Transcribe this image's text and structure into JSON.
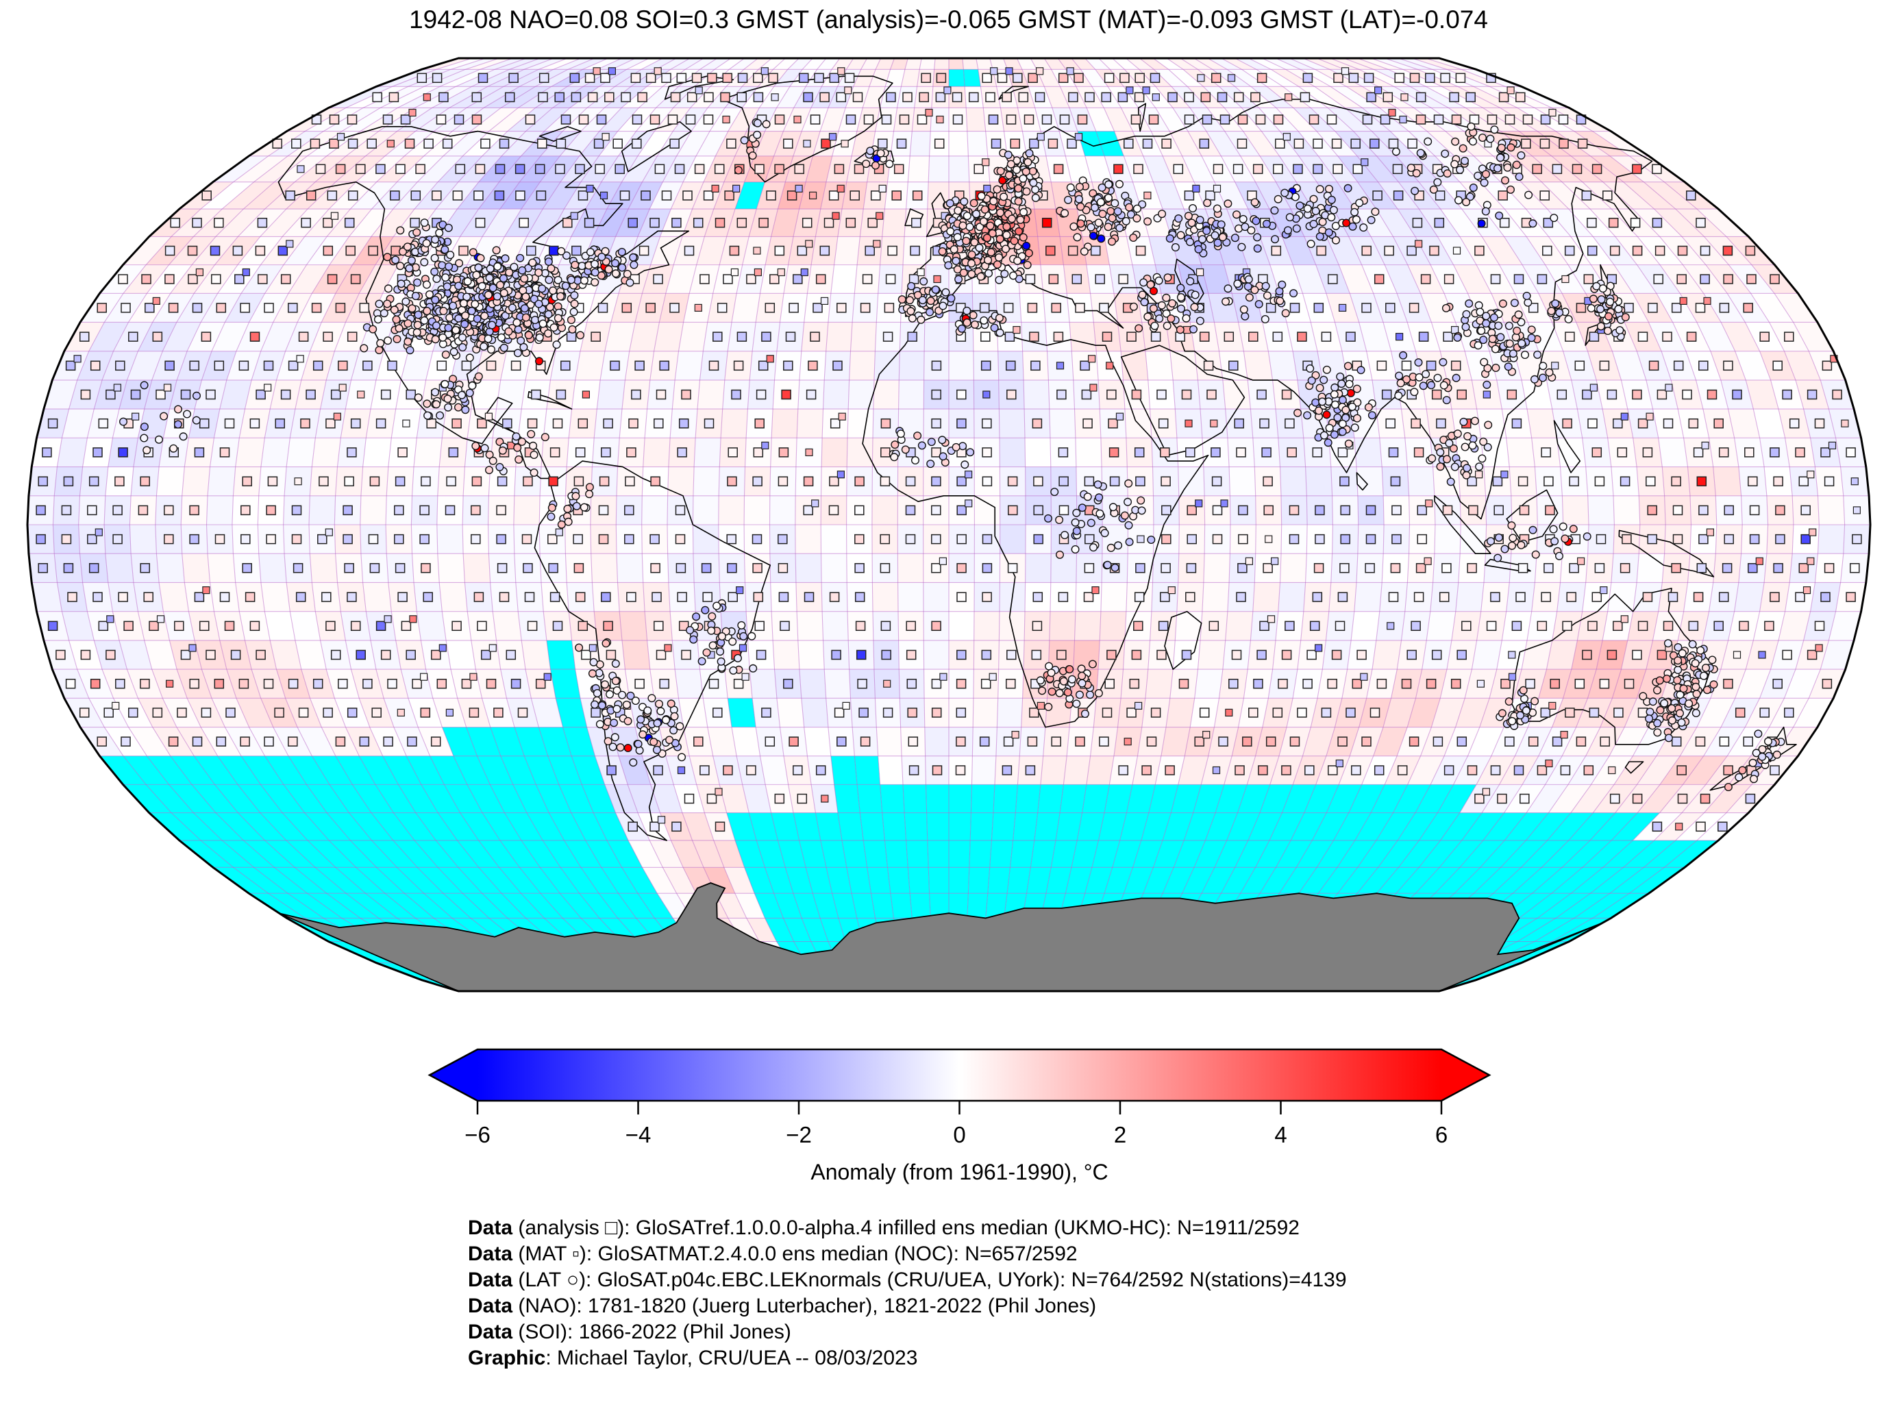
{
  "title": "1942-08 NAO=0.08 SOI=0.3 GMST (analysis)=-0.065 GMST (MAT)=-0.093 GMST (LAT)=-0.074",
  "stats": {
    "date": "1942-08",
    "nao": 0.08,
    "soi": 0.3,
    "gmst_analysis": -0.065,
    "gmst_mat": -0.093,
    "gmst_lat": -0.074
  },
  "colorbar": {
    "label": "Anomaly (from 1961-1990), °C",
    "ticks": [
      "−6",
      "−4",
      "−2",
      "0",
      "2",
      "4",
      "6"
    ],
    "tick_values": [
      -6,
      -4,
      -2,
      0,
      2,
      4,
      6
    ],
    "min": -6,
    "max": 6,
    "color_negative": "#0000ff",
    "color_zero": "#ffffff",
    "color_positive": "#ff0000"
  },
  "annotations": [
    {
      "bold": "Data",
      "rest": " (analysis □): GloSATref.1.0.0.0-alpha.4 infilled ens median (UKMO-HC): N=1911/2592"
    },
    {
      "bold": "Data",
      "rest": " (MAT ▫): GloSATMAT.2.4.0.0 ens median (NOC): N=657/2592"
    },
    {
      "bold": "Data",
      "rest": " (LAT ○): GloSAT.p04c.EBC.LEKnormals (CRU/UEA, UYork): N=764/2592 N(stations)=4139"
    },
    {
      "bold": "Data",
      "rest": " (NAO): 1781-1820 (Juerg Luterbacher), 1821-2022 (Phil Jones)"
    },
    {
      "bold": "Data",
      "rest": " (SOI): 1866-2022 (Phil Jones)"
    },
    {
      "bold": "Graphic",
      "rest": ": Michael Taylor, CRU/UEA -- 08/03/2023"
    }
  ],
  "map": {
    "projection": "robinson",
    "grid_deg": 5,
    "colors": {
      "missing": "#00ffff",
      "antarctica": "#7f7f7f",
      "graticule": "#b55fc6",
      "coastline": "#000000",
      "outline": "#000000"
    },
    "marker_fractions": {
      "analysis": 0.74,
      "mat": 0.13,
      "mat_atlantic": 0.5
    },
    "anomaly_blobs": [
      [
        -150,
        62,
        0.45,
        12,
        6
      ],
      [
        -105,
        61,
        -1.0,
        16,
        9
      ],
      [
        -76,
        54,
        -0.95,
        10,
        7
      ],
      [
        -127,
        44,
        0.95,
        7,
        7
      ],
      [
        -100,
        37,
        -0.5,
        10,
        7
      ],
      [
        -85,
        30,
        0.25,
        8,
        6
      ],
      [
        -35,
        57,
        0.95,
        20,
        9
      ],
      [
        -52,
        63,
        0.6,
        8,
        6
      ],
      [
        -42,
        79,
        -0.5,
        16,
        6
      ],
      [
        -120,
        81,
        -0.55,
        28,
        6
      ],
      [
        0,
        85,
        0.35,
        60,
        8
      ],
      [
        10,
        52,
        0.7,
        8,
        6
      ],
      [
        22,
        51,
        1.5,
        12,
        7
      ],
      [
        5,
        38,
        -0.4,
        8,
        5
      ],
      [
        42,
        33,
        0.6,
        10,
        6
      ],
      [
        55,
        43,
        -0.8,
        12,
        8
      ],
      [
        77,
        51,
        -0.7,
        16,
        8
      ],
      [
        77,
        22,
        -0.5,
        8,
        7
      ],
      [
        105,
        60,
        -0.55,
        18,
        9
      ],
      [
        160,
        65,
        0.7,
        15,
        8
      ],
      [
        138,
        36,
        0.45,
        10,
        6
      ],
      [
        5,
        22,
        -0.4,
        15,
        8
      ],
      [
        22,
        2,
        -0.5,
        12,
        9
      ],
      [
        25,
        -25,
        0.95,
        10,
        7
      ],
      [
        -170,
        50,
        0.5,
        16,
        8
      ],
      [
        -160,
        25,
        -0.45,
        20,
        12
      ],
      [
        -172,
        -5,
        -0.5,
        13,
        14
      ],
      [
        -140,
        -28,
        0.6,
        18,
        8
      ],
      [
        -62,
        -18,
        0.8,
        8,
        6
      ],
      [
        -47,
        -12,
        -0.5,
        10,
        8
      ],
      [
        -68,
        -45,
        -0.6,
        8,
        8
      ],
      [
        -20,
        -30,
        -0.4,
        16,
        10
      ],
      [
        60,
        -38,
        0.55,
        28,
        6
      ],
      [
        95,
        -32,
        0.55,
        14,
        6
      ],
      [
        133,
        -26,
        1.1,
        13,
        7
      ],
      [
        160,
        -45,
        0.6,
        14,
        6
      ],
      [
        -60,
        -60,
        0.85,
        9,
        11
      ],
      [
        80,
        5,
        -0.3,
        14,
        10
      ],
      [
        145,
        5,
        0.25,
        15,
        10
      ],
      [
        -30,
        10,
        0.2,
        15,
        8
      ],
      [
        170,
        30,
        0.3,
        14,
        8
      ],
      [
        -60,
        40,
        0.3,
        10,
        6
      ]
    ],
    "missing_regions": [
      {
        "lon": [
          -180,
          -95
        ],
        "lat": [
          -90,
          -40
        ]
      },
      {
        "lon": [
          -105,
          -75
        ],
        "lat": [
          -90,
          -32.5
        ]
      },
      {
        "lon": [
          -80,
          -75
        ],
        "lat": [
          -55,
          -20
        ]
      },
      {
        "lon": [
          -75,
          -25
        ],
        "lat": [
          -90,
          -50
        ]
      },
      {
        "lon": [
          -25,
          20
        ],
        "lat": [
          -90,
          -45
        ]
      },
      {
        "lon": [
          20,
          115
        ],
        "lat": [
          -90,
          -45
        ]
      },
      {
        "lon": [
          115,
          162.5
        ],
        "lat": [
          -90,
          -47.5
        ]
      },
      {
        "lon": [
          162.5,
          180
        ],
        "lat": [
          -90,
          -52.5
        ]
      },
      {
        "lon": [
          -50,
          -45
        ],
        "lat": [
          55,
          60
        ]
      },
      {
        "lon": [
          37.5,
          47.5
        ],
        "lat": [
          67.5,
          72.5
        ]
      },
      {
        "lon": [
          0,
          10
        ],
        "lat": [
          82.5,
          87.5
        ]
      },
      {
        "lon": [
          -45,
          -40
        ],
        "lat": [
          -35,
          -30
        ]
      },
      {
        "lon": [
          -22.5,
          -12.5
        ],
        "lat": [
          -45,
          -40
        ]
      }
    ],
    "data_windows": [
      {
        "lon": [
          -72.5,
          -50
        ],
        "lat": [
          -77.5,
          -45
        ]
      }
    ],
    "station_clusters": [
      [
        -98,
        38,
        23,
        10,
        640
      ],
      [
        -117,
        49,
        8,
        5,
        50
      ],
      [
        -75,
        45,
        9,
        4,
        60
      ],
      [
        -100,
        23,
        7,
        6,
        35
      ],
      [
        -87,
        13,
        8,
        5,
        22
      ],
      [
        -70,
        -30,
        4,
        11,
        40
      ],
      [
        -62,
        -35,
        8,
        8,
        50
      ],
      [
        -46,
        -20,
        8,
        7,
        40
      ],
      [
        -74,
        4,
        5,
        5,
        18
      ],
      [
        8,
        50,
        11,
        8,
        420
      ],
      [
        17,
        61,
        7,
        6,
        80
      ],
      [
        36,
        54,
        11,
        8,
        90
      ],
      [
        -5,
        39,
        6,
        4,
        45
      ],
      [
        58,
        51,
        14,
        6,
        60
      ],
      [
        88,
        54,
        18,
        7,
        65
      ],
      [
        128,
        60,
        18,
        8,
        45
      ],
      [
        114,
        32,
        12,
        9,
        85
      ],
      [
        138,
        37,
        4,
        5,
        50
      ],
      [
        127,
        37,
        3,
        2,
        14
      ],
      [
        77,
        21,
        8,
        8,
        75
      ],
      [
        101,
        12,
        7,
        7,
        35
      ],
      [
        114,
        -3,
        12,
        5,
        25
      ],
      [
        45,
        38,
        9,
        6,
        50
      ],
      [
        30,
        0,
        12,
        10,
        45
      ],
      [
        25,
        -28,
        8,
        5,
        40
      ],
      [
        -3,
        13,
        12,
        4,
        22
      ],
      [
        5,
        35,
        9,
        3,
        25
      ],
      [
        148,
        -29,
        7,
        9,
        120
      ],
      [
        117,
        -32,
        4,
        4,
        32
      ],
      [
        172,
        -41,
        4,
        6,
        22
      ],
      [
        -157,
        18,
        14,
        10,
        14
      ],
      [
        -18,
        65,
        4,
        2,
        12
      ],
      [
        -52,
        68,
        3,
        7,
        10
      ],
      [
        140,
        67,
        15,
        5,
        25
      ],
      [
        65,
        40,
        10,
        5,
        30
      ],
      [
        95,
        25,
        8,
        5,
        25
      ]
    ]
  }
}
